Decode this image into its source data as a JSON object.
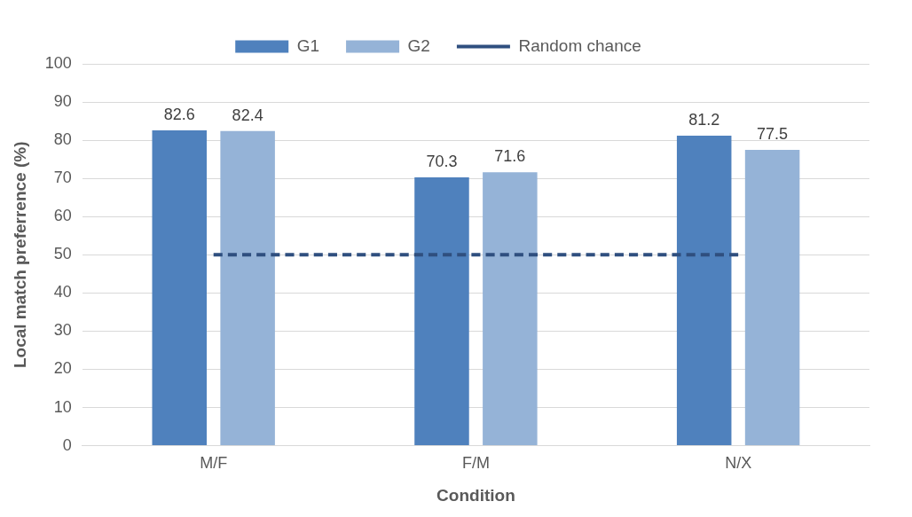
{
  "chart_data": {
    "type": "bar",
    "xlabel": "Condition",
    "ylabel": "Local match preferrence (%)",
    "categories": [
      "M/F",
      "F/M",
      "N/X"
    ],
    "series": [
      {
        "name": "G1",
        "color": "#4f81bd",
        "values": [
          82.6,
          70.3,
          81.2
        ],
        "value_labels": [
          "82.6",
          "70.3",
          "81.2"
        ]
      },
      {
        "name": "G2",
        "color": "#95b3d7",
        "values": [
          82.4,
          71.6,
          77.5
        ],
        "value_labels": [
          "82.4",
          "71.6",
          "77.5"
        ]
      },
      {
        "name": "Random chance",
        "type": "line",
        "color": "#2f4f7f",
        "line_style": "dashed",
        "marker": "none",
        "values": [
          50,
          50,
          50
        ]
      }
    ],
    "ylim": [
      0,
      100
    ],
    "yticks": [
      0,
      10,
      20,
      30,
      40,
      50,
      60,
      70,
      80,
      90,
      100
    ],
    "grid": "y",
    "legend": "top"
  }
}
